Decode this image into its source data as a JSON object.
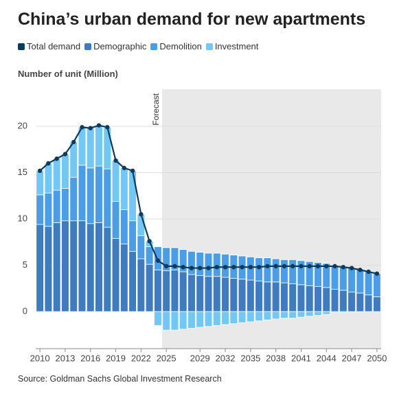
{
  "chart_data": {
    "type": "stacked-bar-line",
    "title": "China’s urban demand for new apartments",
    "y_axis_label": "Number of unit (Million)",
    "source": "Source: Goldman Sachs Global Investment Research",
    "shaded_region": {
      "label": "Forecast",
      "x": [
        2024.5,
        2050.5
      ]
    },
    "x": [
      2010,
      2011,
      2012,
      2013,
      2014,
      2015,
      2016,
      2017,
      2018,
      2019,
      2020,
      2021,
      2022,
      2023,
      2024,
      2025,
      2026,
      2027,
      2028,
      2029,
      2030,
      2031,
      2032,
      2033,
      2034,
      2035,
      2036,
      2037,
      2038,
      2039,
      2040,
      2041,
      2042,
      2043,
      2044,
      2045,
      2046,
      2047,
      2048,
      2049,
      2050
    ],
    "xlim": [
      2009.5,
      2050.5
    ],
    "xticks": [
      2010,
      2013,
      2016,
      2019,
      2022,
      2025,
      2029,
      2032,
      2035,
      2038,
      2041,
      2044,
      2047,
      2050
    ],
    "ylim": [
      -4,
      24
    ],
    "yticks": [
      0,
      5,
      10,
      15,
      20
    ],
    "grid": true,
    "series": [
      {
        "name": "Total demand",
        "color": "#0e3a5c",
        "kind": "line",
        "values": [
          15.2,
          16.0,
          16.5,
          17.0,
          18.3,
          19.9,
          19.8,
          20.1,
          19.9,
          16.3,
          15.5,
          15.2,
          10.5,
          7.6,
          5.5,
          4.9,
          4.9,
          4.8,
          4.7,
          4.7,
          4.7,
          4.8,
          4.8,
          4.8,
          4.8,
          4.8,
          4.8,
          4.9,
          4.9,
          4.9,
          4.9,
          4.9,
          4.9,
          4.9,
          4.9,
          4.9,
          4.8,
          4.7,
          4.5,
          4.3,
          4.1
        ]
      },
      {
        "name": "Demographic",
        "color": "#3f7cbf",
        "kind": "bar",
        "values": [
          9.4,
          9.2,
          9.6,
          9.8,
          9.8,
          9.8,
          9.5,
          9.6,
          9.1,
          7.9,
          7.3,
          6.5,
          5.7,
          5.1,
          4.5,
          4.4,
          4.5,
          4.3,
          4.0,
          3.9,
          3.8,
          3.8,
          3.7,
          3.6,
          3.5,
          3.4,
          3.3,
          3.2,
          3.2,
          3.1,
          3.0,
          2.9,
          2.8,
          2.7,
          2.6,
          2.4,
          2.3,
          2.1,
          2.0,
          1.8,
          1.6
        ]
      },
      {
        "name": "Demolition",
        "color": "#4a9de6",
        "kind": "bar",
        "values": [
          3.2,
          3.6,
          3.5,
          3.5,
          4.7,
          6.0,
          6.0,
          6.1,
          6.3,
          4.0,
          3.7,
          3.3,
          2.5,
          1.9,
          2.5,
          2.5,
          2.4,
          2.4,
          2.5,
          2.5,
          2.5,
          2.5,
          2.5,
          2.5,
          2.5,
          2.5,
          2.5,
          2.6,
          2.5,
          2.5,
          2.6,
          2.6,
          2.6,
          2.6,
          2.6,
          2.6,
          2.6,
          2.6,
          2.6,
          2.5,
          2.5
        ]
      },
      {
        "name": "Investment",
        "color": "#72c7f4",
        "kind": "bar",
        "values": [
          2.6,
          3.2,
          3.4,
          3.7,
          3.8,
          4.1,
          4.3,
          4.3,
          4.5,
          4.4,
          4.5,
          5.4,
          2.3,
          0.6,
          -1.5,
          -2.0,
          -2.0,
          -1.9,
          -1.8,
          -1.7,
          -1.6,
          -1.5,
          -1.4,
          -1.3,
          -1.2,
          -1.1,
          -1.0,
          -0.9,
          -0.8,
          -0.7,
          -0.7,
          -0.6,
          -0.5,
          -0.4,
          -0.3,
          -0.1,
          -0.1,
          0,
          0,
          0,
          0
        ]
      }
    ]
  }
}
